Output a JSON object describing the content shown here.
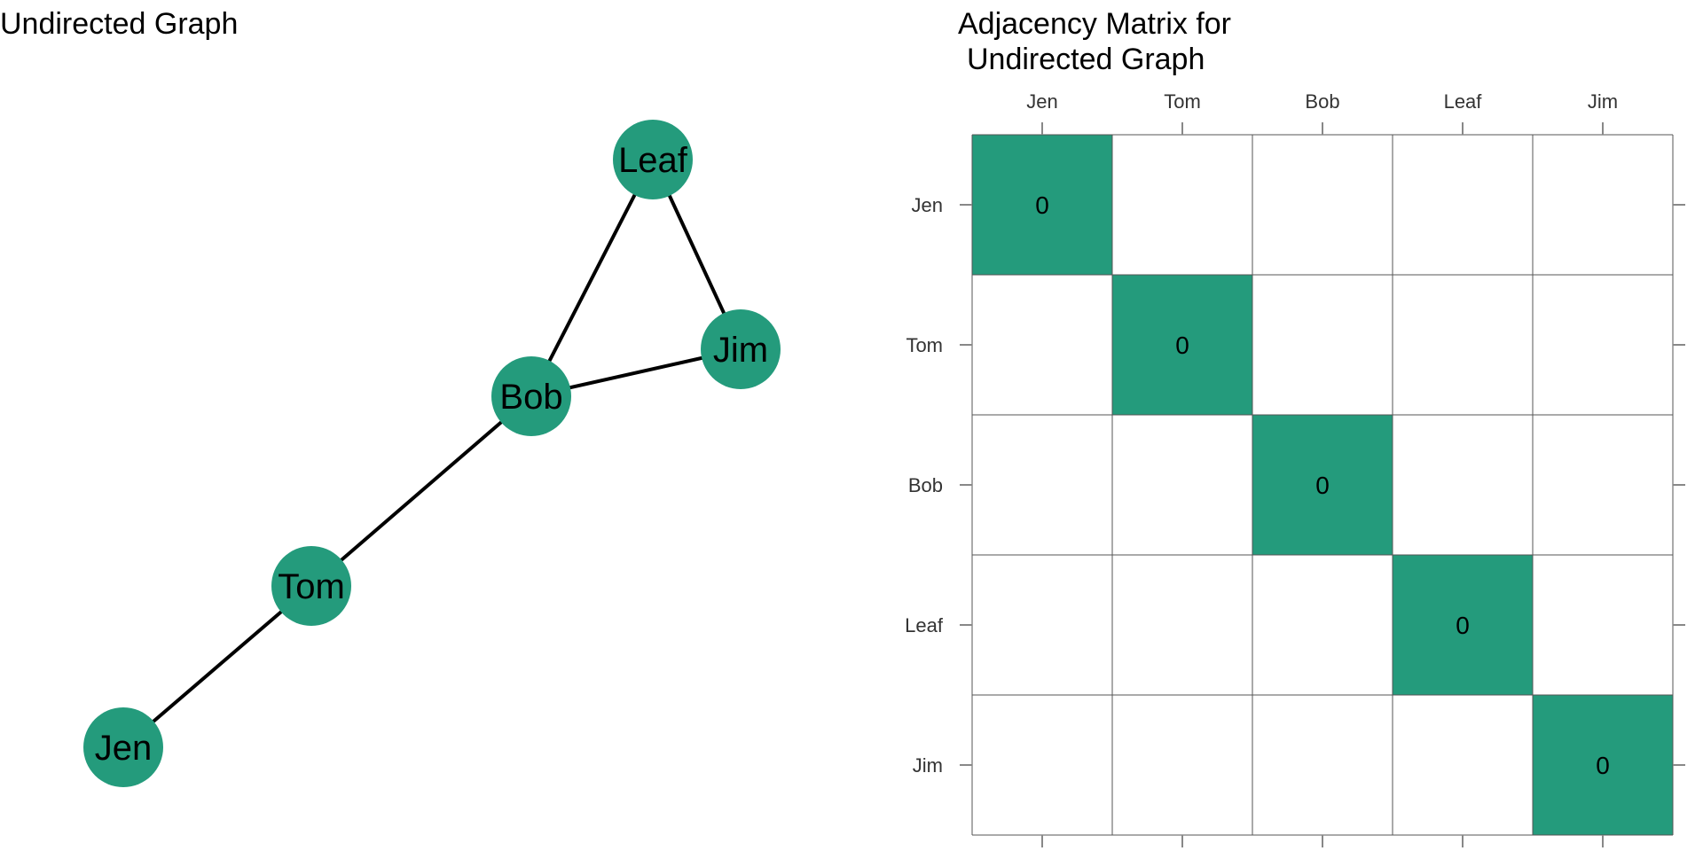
{
  "colors": {
    "node_fill": "#249b7c",
    "edge": "#000000",
    "cell_filled": "#249b7c",
    "grid": "#555555",
    "tick": "#888888"
  },
  "graph": {
    "title": "Undirected Graph",
    "nodes": [
      {
        "id": "Jen",
        "label": "Jen"
      },
      {
        "id": "Tom",
        "label": "Tom"
      },
      {
        "id": "Bob",
        "label": "Bob"
      },
      {
        "id": "Leaf",
        "label": "Leaf"
      },
      {
        "id": "Jim",
        "label": "Jim"
      }
    ],
    "edges": [
      [
        "Jen",
        "Tom"
      ],
      [
        "Tom",
        "Bob"
      ],
      [
        "Bob",
        "Leaf"
      ],
      [
        "Bob",
        "Jim"
      ],
      [
        "Leaf",
        "Jim"
      ]
    ]
  },
  "matrix": {
    "title_line1": "Adjacency Matrix for",
    "title_line2": "Undirected Graph",
    "labels": [
      "Jen",
      "Tom",
      "Bob",
      "Leaf",
      "Jim"
    ],
    "filled_cells": [
      {
        "row": 0,
        "col": 0,
        "value": "0"
      },
      {
        "row": 1,
        "col": 1,
        "value": "0"
      },
      {
        "row": 2,
        "col": 2,
        "value": "0"
      },
      {
        "row": 3,
        "col": 3,
        "value": "0"
      },
      {
        "row": 4,
        "col": 4,
        "value": "0"
      }
    ]
  }
}
